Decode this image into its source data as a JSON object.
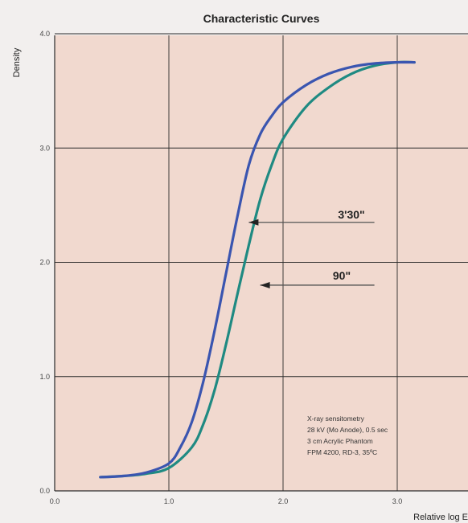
{
  "chart_data": {
    "type": "line",
    "title": "Characteristic Curves",
    "xlabel": "Relative log E",
    "ylabel": "Density",
    "xlim": [
      0.0,
      3.6
    ],
    "ylim": [
      0.0,
      4.0
    ],
    "x_ticks": [
      "0.0",
      "1.0",
      "2.0",
      "3.0"
    ],
    "y_ticks": [
      "0.0",
      "1.0",
      "2.0",
      "3.0",
      "4.0"
    ],
    "grid": true,
    "plot_background": "#f1d9cf",
    "series": [
      {
        "name": "3'30\"",
        "color": "#3a55b0",
        "points": [
          [
            0.4,
            0.12
          ],
          [
            0.6,
            0.13
          ],
          [
            0.8,
            0.16
          ],
          [
            1.0,
            0.24
          ],
          [
            1.1,
            0.38
          ],
          [
            1.2,
            0.6
          ],
          [
            1.3,
            0.95
          ],
          [
            1.4,
            1.4
          ],
          [
            1.5,
            1.9
          ],
          [
            1.6,
            2.4
          ],
          [
            1.7,
            2.85
          ],
          [
            1.8,
            3.12
          ],
          [
            1.9,
            3.28
          ],
          [
            2.0,
            3.4
          ],
          [
            2.2,
            3.55
          ],
          [
            2.4,
            3.65
          ],
          [
            2.6,
            3.71
          ],
          [
            2.8,
            3.74
          ],
          [
            3.0,
            3.75
          ],
          [
            3.15,
            3.75
          ]
        ]
      },
      {
        "name": "90\"",
        "color": "#1f8a82",
        "points": [
          [
            0.4,
            0.12
          ],
          [
            0.6,
            0.13
          ],
          [
            0.8,
            0.15
          ],
          [
            1.0,
            0.2
          ],
          [
            1.2,
            0.38
          ],
          [
            1.3,
            0.58
          ],
          [
            1.4,
            0.88
          ],
          [
            1.5,
            1.28
          ],
          [
            1.6,
            1.72
          ],
          [
            1.7,
            2.15
          ],
          [
            1.8,
            2.55
          ],
          [
            1.9,
            2.85
          ],
          [
            2.0,
            3.08
          ],
          [
            2.2,
            3.36
          ],
          [
            2.4,
            3.53
          ],
          [
            2.6,
            3.65
          ],
          [
            2.8,
            3.72
          ],
          [
            3.0,
            3.75
          ],
          [
            3.15,
            3.75
          ]
        ]
      }
    ],
    "annotations": [
      {
        "text": "3'30\"",
        "target_series": 0,
        "arrow_from": [
          2.8,
          2.35
        ],
        "arrow_to": [
          1.7,
          2.35
        ]
      },
      {
        "text": "90\"",
        "target_series": 1,
        "arrow_from": [
          2.8,
          1.8
        ],
        "arrow_to": [
          1.8,
          1.8
        ]
      }
    ],
    "note_lines": [
      "X-ray sensitometry",
      "28 kV (Mo Anode), 0.5 sec",
      "3 cm Acrylic Phantom",
      "FPM 4200, RD-3, 35ºC"
    ]
  }
}
